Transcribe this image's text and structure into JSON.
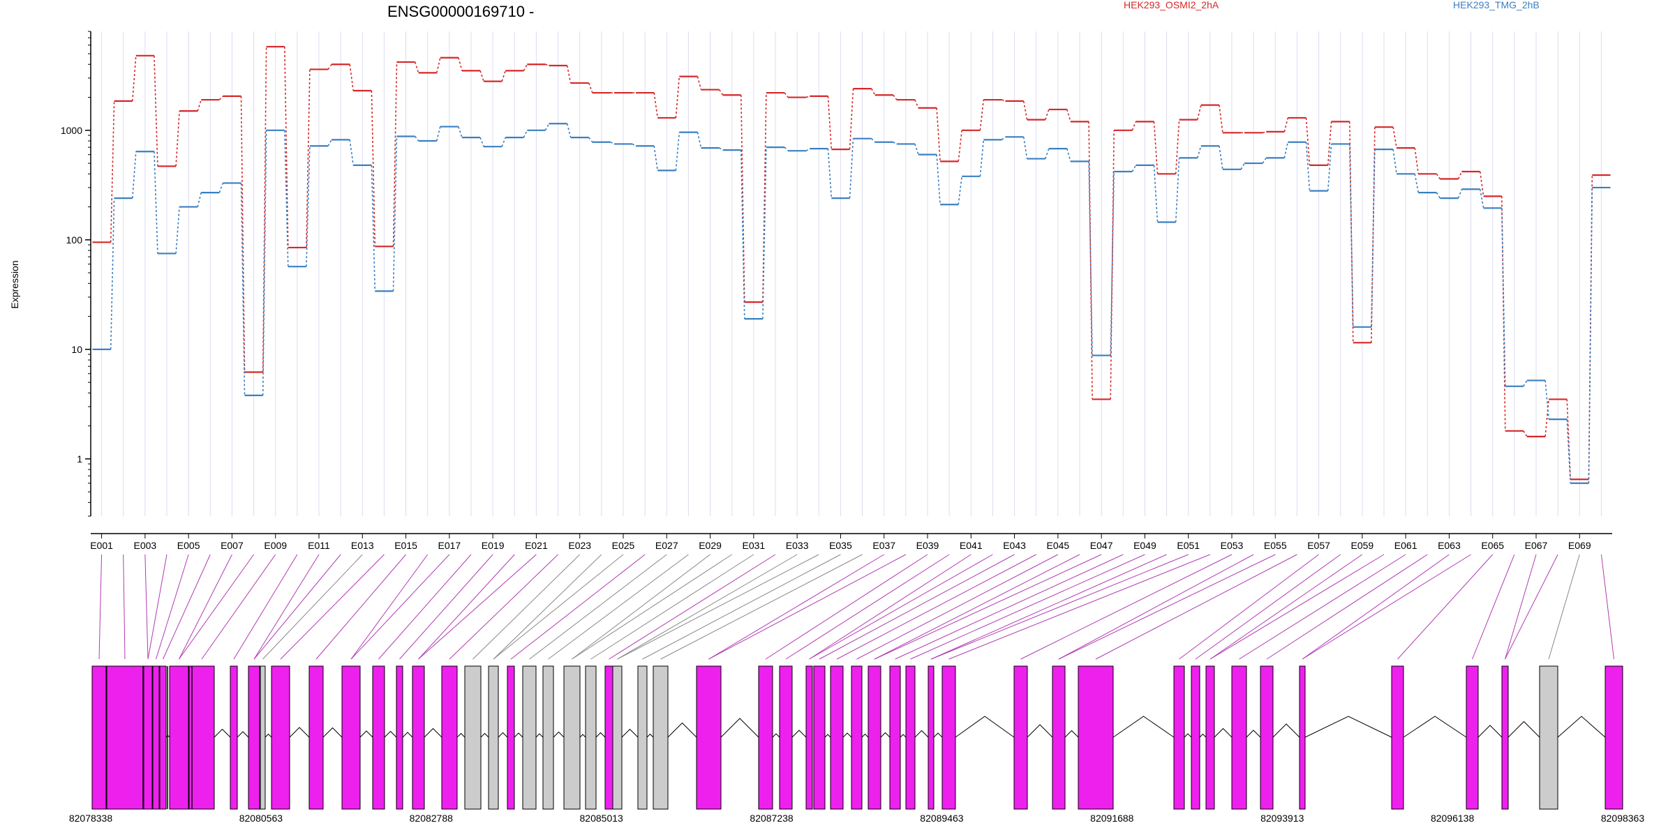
{
  "chart_data": {
    "type": "line",
    "title": "ENSG00000169710 -",
    "ylabel": "Expression",
    "yscale": "log",
    "ylim": [
      0.3,
      8000
    ],
    "yticks": [
      "1",
      "10",
      "100",
      "1000"
    ],
    "xlabels": [
      "E001",
      "E003",
      "E005",
      "E007",
      "E009",
      "E011",
      "E013",
      "E015",
      "E017",
      "E019",
      "E021",
      "E023",
      "E025",
      "E027",
      "E029",
      "E031",
      "E033",
      "E035",
      "E037",
      "E039",
      "E041",
      "E043",
      "E045",
      "E047",
      "E049",
      "E051",
      "E053",
      "E055",
      "E057",
      "E059",
      "E061",
      "E063",
      "E065",
      "E067",
      "E069"
    ],
    "n_exons": 70,
    "series": [
      {
        "name": "HEK293_OSMI2_2hA",
        "color": "#d62728",
        "values": [
          95,
          1850,
          4800,
          470,
          1500,
          1900,
          2050,
          6.2,
          5800,
          85,
          3600,
          4000,
          2300,
          87,
          4200,
          3350,
          4600,
          3500,
          2800,
          3500,
          4000,
          3900,
          2700,
          2200,
          2200,
          2200,
          1300,
          3100,
          2350,
          2100,
          27,
          2200,
          2000,
          2050,
          670,
          2400,
          2100,
          1900,
          1600,
          520,
          1000,
          1900,
          1850,
          1250,
          1550,
          1200,
          3.5,
          1000,
          1200,
          400,
          1250,
          1700,
          950,
          950,
          970,
          1300,
          480,
          1200,
          11.5,
          1070,
          690,
          400,
          360,
          420,
          250,
          1.8,
          1.6,
          3.5,
          0.65,
          390
        ]
      },
      {
        "name": "HEK293_TMG_2hB",
        "color": "#3a7fc0",
        "values": [
          10,
          240,
          640,
          75,
          200,
          270,
          330,
          3.8,
          1000,
          57,
          720,
          820,
          480,
          34,
          880,
          800,
          1080,
          860,
          710,
          860,
          1000,
          1150,
          860,
          780,
          750,
          720,
          430,
          960,
          690,
          660,
          19,
          700,
          650,
          680,
          240,
          840,
          780,
          750,
          600,
          210,
          380,
          820,
          870,
          550,
          680,
          520,
          8.8,
          420,
          480,
          145,
          560,
          720,
          440,
          500,
          560,
          780,
          280,
          750,
          16,
          670,
          400,
          270,
          240,
          290,
          195,
          4.6,
          5.2,
          2.3,
          0.6,
          300
        ]
      }
    ],
    "genome_labels": [
      "82078338",
      "82080563",
      "82082788",
      "82085013",
      "82087238",
      "82089463",
      "82091688",
      "82093913",
      "82096138",
      "82098363"
    ],
    "exon_colors": {
      "highlight": "#ee20ee",
      "normal": "#cccccc"
    },
    "grid": "vertical",
    "legend": "top"
  }
}
